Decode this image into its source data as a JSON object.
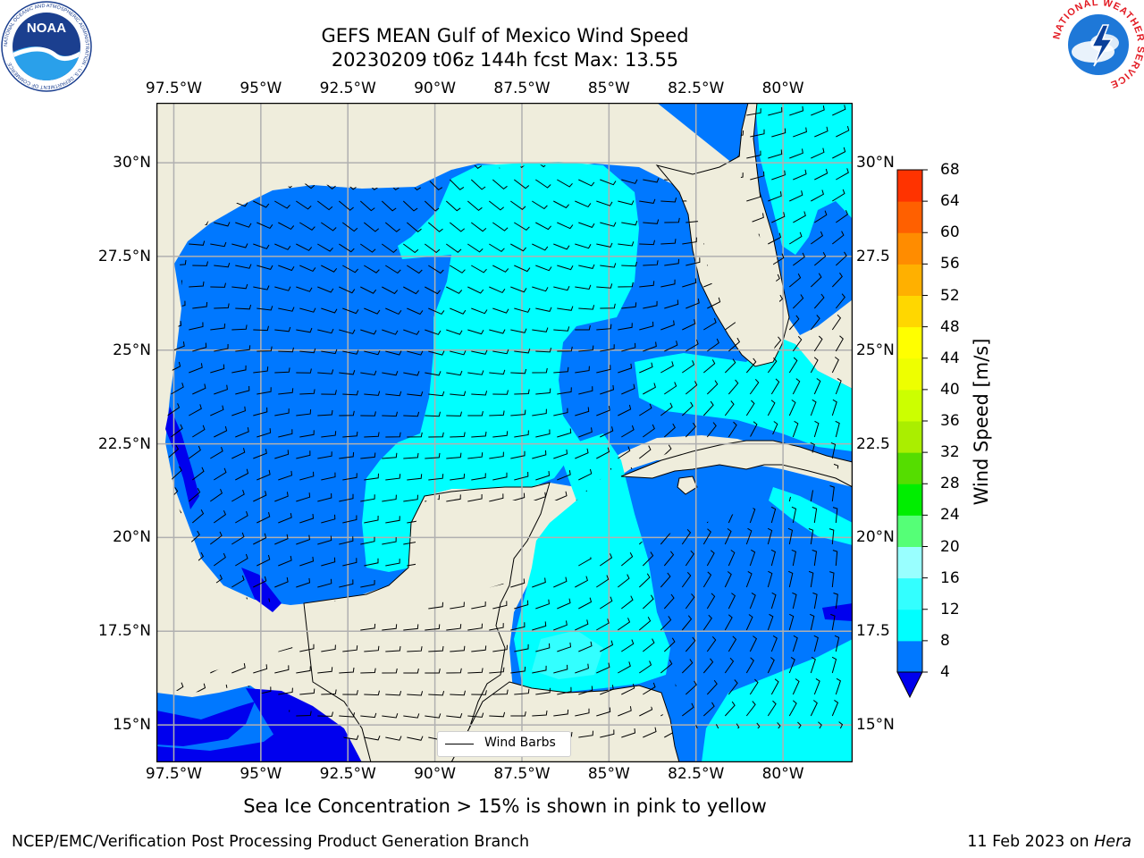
{
  "title": {
    "line1": "GEFS MEAN Gulf of Mexico Wind Speed",
    "line2": "20230209 t06z 144h fcst   Max: 13.55"
  },
  "axes": {
    "top_ticks": [
      "97.5°W",
      "95°W",
      "92.5°W",
      "90°W",
      "87.5°W",
      "85°W",
      "82.5°W",
      "80°W"
    ],
    "bottom_ticks": [
      "97.5°W",
      "95°W",
      "92.5°W",
      "90°W",
      "87.5°W",
      "85°W",
      "82.5°W",
      "80°W"
    ],
    "left_ticks": [
      "30°N",
      "27.5°N",
      "25°N",
      "22.5°N",
      "20°N",
      "17.5°N",
      "15°N"
    ],
    "right_ticks": [
      "30°N",
      "27.5",
      "25°N",
      "22.5",
      "20°N",
      "17.5",
      "15°N"
    ],
    "lon_values": [
      -97.5,
      -95,
      -92.5,
      -90,
      -87.5,
      -85,
      -82.5,
      -80
    ],
    "lat_values": [
      30,
      27.5,
      25,
      22.5,
      20,
      17.5,
      15
    ],
    "lon_range": [
      -98,
      -78
    ],
    "lat_range": [
      14,
      31.6
    ]
  },
  "legend": {
    "label": "Wind Barbs"
  },
  "colorbar": {
    "label": "Wind Speed [m/s]",
    "ticks": [
      "68",
      "64",
      "60",
      "56",
      "52",
      "48",
      "44",
      "40",
      "36",
      "32",
      "28",
      "24",
      "20",
      "16",
      "12",
      "8",
      "4"
    ],
    "levels": [
      4,
      8,
      12,
      16,
      20,
      24,
      28,
      32,
      36,
      40,
      44,
      48,
      52,
      56,
      60,
      64,
      68
    ],
    "colors": [
      "#0078ff",
      "#00ffff",
      "#33ffff",
      "#99ffff",
      "#55ff77",
      "#00ee00",
      "#55dd00",
      "#aaee00",
      "#ccff00",
      "#eeff00",
      "#ffff00",
      "#ffd700",
      "#ffb000",
      "#ff8c00",
      "#ff6000",
      "#ff3300",
      "#ff0000"
    ],
    "under_color": "#0000ee"
  },
  "colors": {
    "land": "#efeddc",
    "speed_4_8": "#0078ff",
    "speed_8_12": "#00ffff",
    "speed_under_4": "#0000ee",
    "grid": "#b0b0b0"
  },
  "logos": {
    "noaa_text": "NOAA",
    "noaa_ring": "NATIONAL OCEANIC AND ATMOSPHERIC ADMINISTRATION · U.S. DEPARTMENT OF COMMERCE",
    "nws_ring": "NATIONAL WEATHER SERVICE"
  },
  "note": "Sea Ice Concentration > 15% is shown in pink to yellow",
  "footer": {
    "left": "NCEP/EMC/Verification Post Processing Product Generation Branch",
    "right_prefix": "11 Feb 2023 on ",
    "right_host": "Hera"
  }
}
